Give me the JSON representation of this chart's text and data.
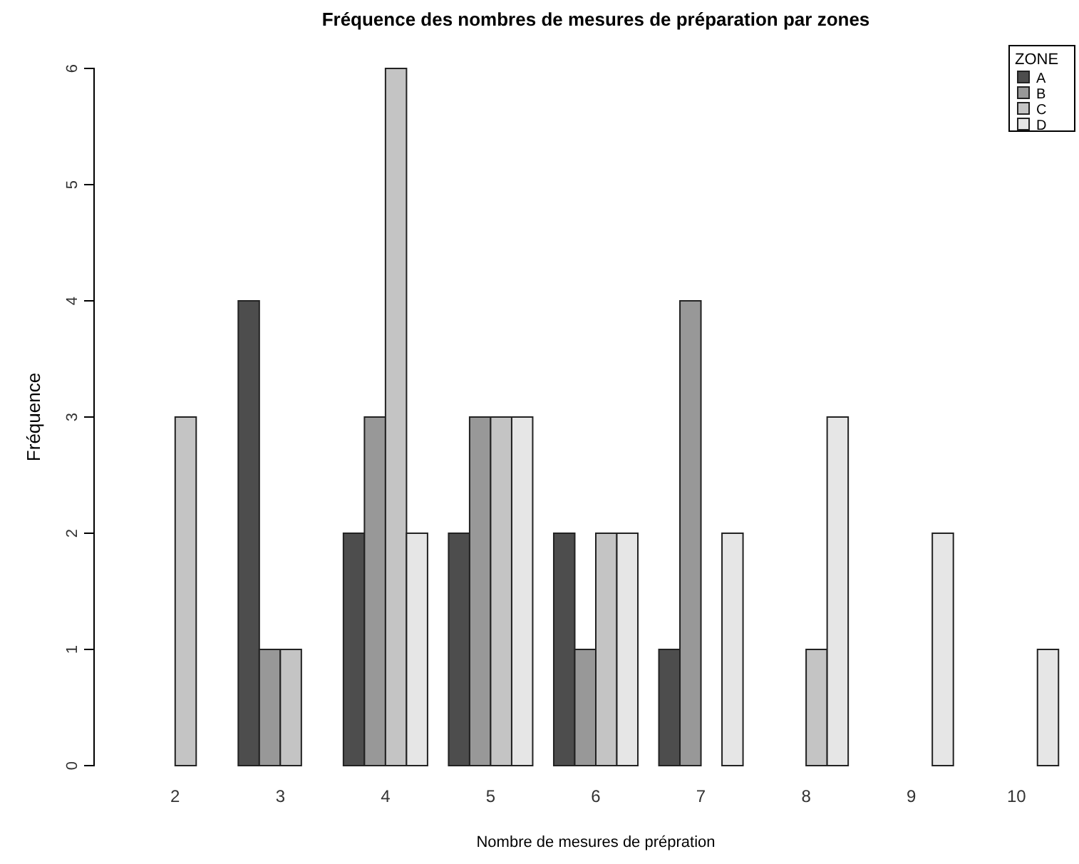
{
  "chart_data": {
    "type": "bar",
    "title": "Fréquence des nombres de mesures de préparation par zones",
    "xlabel": "Nombre de mesures de prépration",
    "ylabel": "Fréquence",
    "legend_title": "ZONE",
    "legend": "top right",
    "categories": [
      "2",
      "3",
      "4",
      "5",
      "6",
      "7",
      "8",
      "9",
      "10"
    ],
    "ylim": [
      0,
      6
    ],
    "yticks": [
      0,
      1,
      2,
      3,
      4,
      5,
      6
    ],
    "series": [
      {
        "name": "A",
        "color": "#4d4d4d",
        "values": [
          0,
          4,
          2,
          2,
          2,
          1,
          0,
          0,
          0
        ]
      },
      {
        "name": "B",
        "color": "#989898",
        "values": [
          0,
          1,
          3,
          3,
          1,
          4,
          0,
          0,
          0
        ]
      },
      {
        "name": "C",
        "color": "#c4c4c4",
        "values": [
          3,
          1,
          6,
          3,
          2,
          0,
          1,
          0,
          0
        ]
      },
      {
        "name": "D",
        "color": "#e6e6e6",
        "values": [
          0,
          0,
          2,
          3,
          2,
          2,
          3,
          2,
          1
        ]
      }
    ]
  }
}
